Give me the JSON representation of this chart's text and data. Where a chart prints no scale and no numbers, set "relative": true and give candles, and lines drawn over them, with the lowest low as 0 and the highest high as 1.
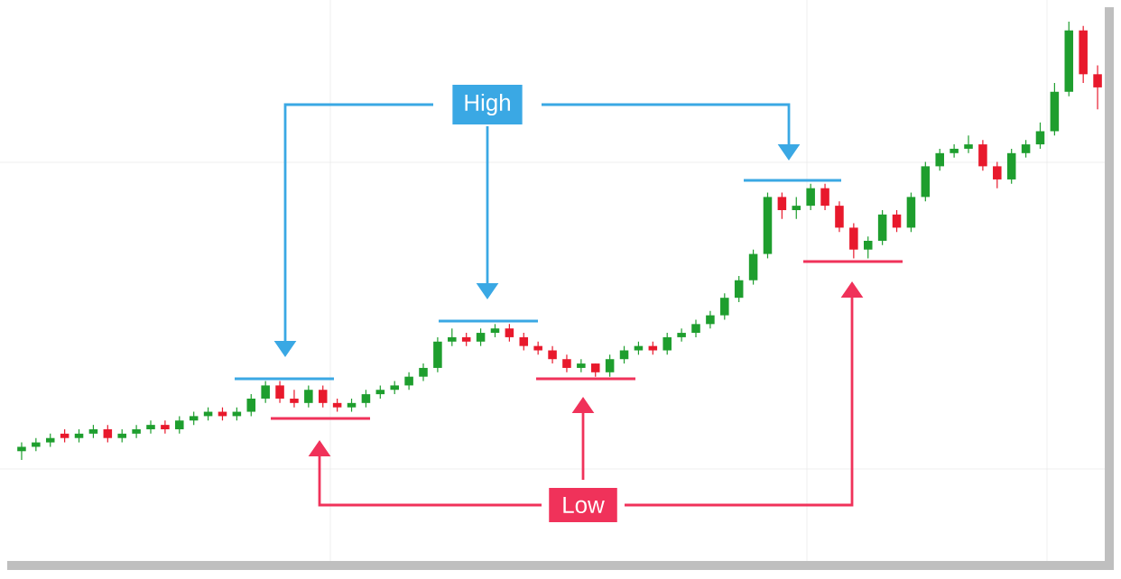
{
  "chart_data": {
    "type": "candlestick",
    "relative": true,
    "annotations": [
      "High",
      "Low"
    ],
    "categories": [
      null,
      null,
      null,
      null,
      null,
      null,
      null,
      null,
      null,
      null,
      null,
      null,
      null,
      null,
      null,
      null,
      null,
      null,
      null,
      null,
      null,
      null,
      null,
      null,
      null,
      null,
      null,
      null,
      null,
      null,
      null,
      null,
      null,
      null,
      null,
      null,
      null,
      null,
      null,
      null,
      null,
      null,
      null,
      null,
      null,
      null,
      null,
      null,
      null,
      null,
      null,
      null,
      null,
      null,
      null,
      null,
      null,
      null,
      null,
      null,
      null,
      null,
      null,
      null,
      null,
      null,
      null,
      null,
      null,
      null,
      null,
      null,
      null,
      null,
      null,
      null
    ],
    "ohlc": [
      [
        0.02,
        0.04,
        0,
        0.03
      ],
      [
        0.03,
        0.05,
        0.02,
        0.04
      ],
      [
        0.04,
        0.06,
        0.03,
        0.05
      ],
      [
        0.06,
        0.07,
        0.04,
        0.05
      ],
      [
        0.05,
        0.07,
        0.04,
        0.06
      ],
      [
        0.06,
        0.08,
        0.05,
        0.07
      ],
      [
        0.07,
        0.08,
        0.04,
        0.05
      ],
      [
        0.05,
        0.07,
        0.04,
        0.06
      ],
      [
        0.06,
        0.08,
        0.05,
        0.07
      ],
      [
        0.07,
        0.09,
        0.06,
        0.08
      ],
      [
        0.08,
        0.09,
        0.06,
        0.07
      ],
      [
        0.07,
        0.1,
        0.06,
        0.09
      ],
      [
        0.09,
        0.11,
        0.08,
        0.1
      ],
      [
        0.1,
        0.12,
        0.09,
        0.11
      ],
      [
        0.11,
        0.12,
        0.09,
        0.1
      ],
      [
        0.1,
        0.12,
        0.09,
        0.11
      ],
      [
        0.11,
        0.15,
        0.1,
        0.14
      ],
      [
        0.14,
        0.18,
        0.13,
        0.17
      ],
      [
        0.17,
        0.18,
        0.13,
        0.14
      ],
      [
        0.14,
        0.16,
        0.12,
        0.13
      ],
      [
        0.13,
        0.17,
        0.12,
        0.16
      ],
      [
        0.16,
        0.17,
        0.12,
        0.13
      ],
      [
        0.13,
        0.14,
        0.11,
        0.12
      ],
      [
        0.12,
        0.14,
        0.11,
        0.13
      ],
      [
        0.13,
        0.16,
        0.12,
        0.15
      ],
      [
        0.15,
        0.17,
        0.14,
        0.16
      ],
      [
        0.16,
        0.18,
        0.15,
        0.17
      ],
      [
        0.17,
        0.2,
        0.16,
        0.19
      ],
      [
        0.19,
        0.22,
        0.18,
        0.21
      ],
      [
        0.21,
        0.28,
        0.2,
        0.27
      ],
      [
        0.27,
        0.3,
        0.26,
        0.28
      ],
      [
        0.28,
        0.29,
        0.26,
        0.27
      ],
      [
        0.27,
        0.3,
        0.26,
        0.29
      ],
      [
        0.29,
        0.31,
        0.28,
        0.3
      ],
      [
        0.3,
        0.31,
        0.27,
        0.28
      ],
      [
        0.28,
        0.29,
        0.25,
        0.26
      ],
      [
        0.26,
        0.27,
        0.24,
        0.25
      ],
      [
        0.25,
        0.26,
        0.22,
        0.23
      ],
      [
        0.23,
        0.24,
        0.2,
        0.21
      ],
      [
        0.21,
        0.23,
        0.2,
        0.22
      ],
      [
        0.22,
        0.22,
        0.19,
        0.2
      ],
      [
        0.2,
        0.24,
        0.19,
        0.23
      ],
      [
        0.23,
        0.26,
        0.22,
        0.25
      ],
      [
        0.25,
        0.27,
        0.24,
        0.26
      ],
      [
        0.26,
        0.27,
        0.24,
        0.25
      ],
      [
        0.25,
        0.29,
        0.24,
        0.28
      ],
      [
        0.28,
        0.3,
        0.27,
        0.29
      ],
      [
        0.29,
        0.32,
        0.28,
        0.31
      ],
      [
        0.31,
        0.34,
        0.3,
        0.33
      ],
      [
        0.33,
        0.38,
        0.32,
        0.37
      ],
      [
        0.37,
        0.42,
        0.36,
        0.41
      ],
      [
        0.41,
        0.48,
        0.4,
        0.47
      ],
      [
        0.47,
        0.61,
        0.46,
        0.6
      ],
      [
        0.6,
        0.61,
        0.55,
        0.57
      ],
      [
        0.57,
        0.6,
        0.55,
        0.58
      ],
      [
        0.58,
        0.63,
        0.57,
        0.62
      ],
      [
        0.62,
        0.63,
        0.57,
        0.58
      ],
      [
        0.58,
        0.59,
        0.52,
        0.53
      ],
      [
        0.53,
        0.54,
        0.46,
        0.48
      ],
      [
        0.48,
        0.51,
        0.46,
        0.5
      ],
      [
        0.5,
        0.57,
        0.49,
        0.56
      ],
      [
        0.56,
        0.57,
        0.52,
        0.53
      ],
      [
        0.53,
        0.61,
        0.52,
        0.6
      ],
      [
        0.6,
        0.68,
        0.59,
        0.67
      ],
      [
        0.67,
        0.71,
        0.66,
        0.7
      ],
      [
        0.7,
        0.72,
        0.69,
        0.71
      ],
      [
        0.71,
        0.74,
        0.7,
        0.72
      ],
      [
        0.72,
        0.73,
        0.66,
        0.67
      ],
      [
        0.67,
        0.68,
        0.62,
        0.64
      ],
      [
        0.64,
        0.71,
        0.63,
        0.7
      ],
      [
        0.7,
        0.73,
        0.69,
        0.72
      ],
      [
        0.72,
        0.77,
        0.71,
        0.75
      ],
      [
        0.75,
        0.86,
        0.74,
        0.84
      ],
      [
        0.84,
        1,
        0.83,
        0.98
      ],
      [
        0.98,
        0.99,
        0.86,
        0.88
      ],
      [
        0.88,
        0.9,
        0.8,
        0.85
      ]
    ]
  }
}
